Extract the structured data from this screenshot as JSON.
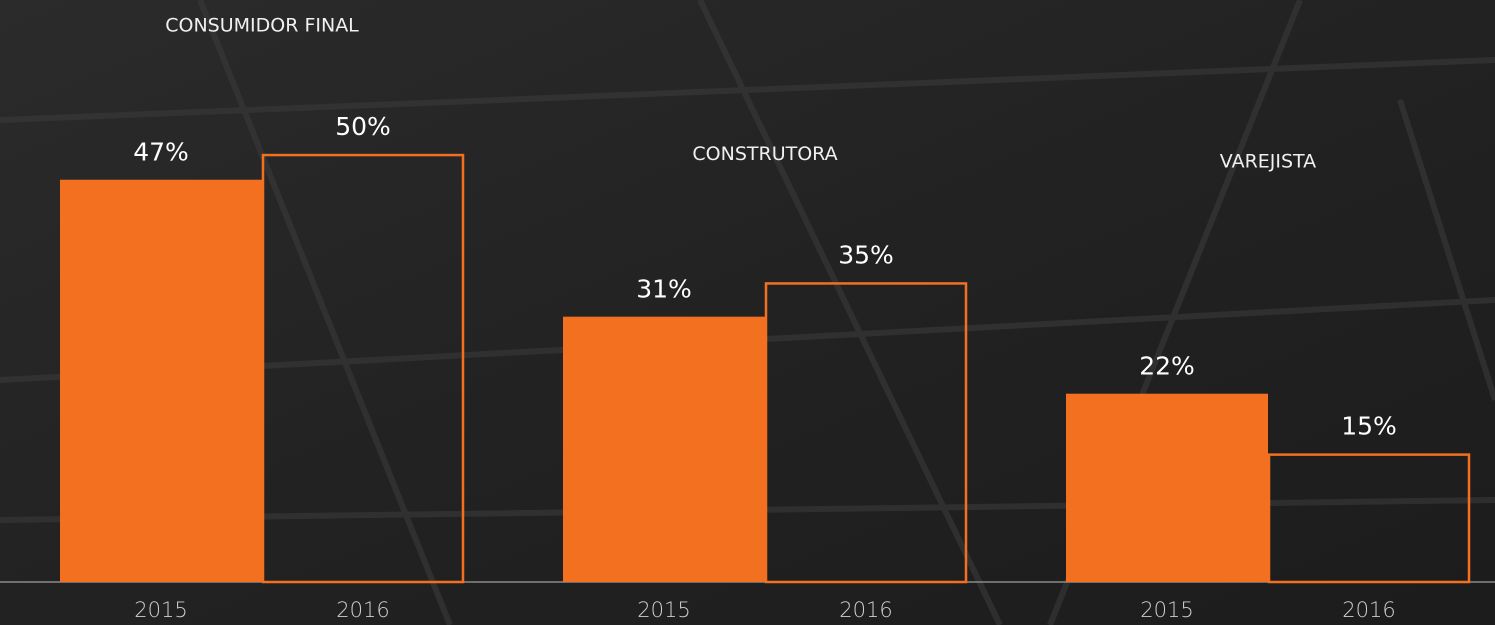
{
  "chart_data": {
    "type": "bar",
    "categories": [
      "CONSUMIDOR FINAL",
      "CONSTRUTORA",
      "VAREJISTA"
    ],
    "series": [
      {
        "name": "2015",
        "color": "#f37021",
        "style": "filled",
        "values": [
          47,
          31,
          22
        ],
        "value_labels": [
          "47%",
          "31%",
          "22%"
        ]
      },
      {
        "name": "2016",
        "color": "#f37021",
        "style": "outline",
        "values": [
          50,
          35,
          15
        ],
        "value_labels": [
          "50%",
          "35%",
          "15%"
        ]
      }
    ],
    "ylim": [
      0,
      68
    ]
  }
}
